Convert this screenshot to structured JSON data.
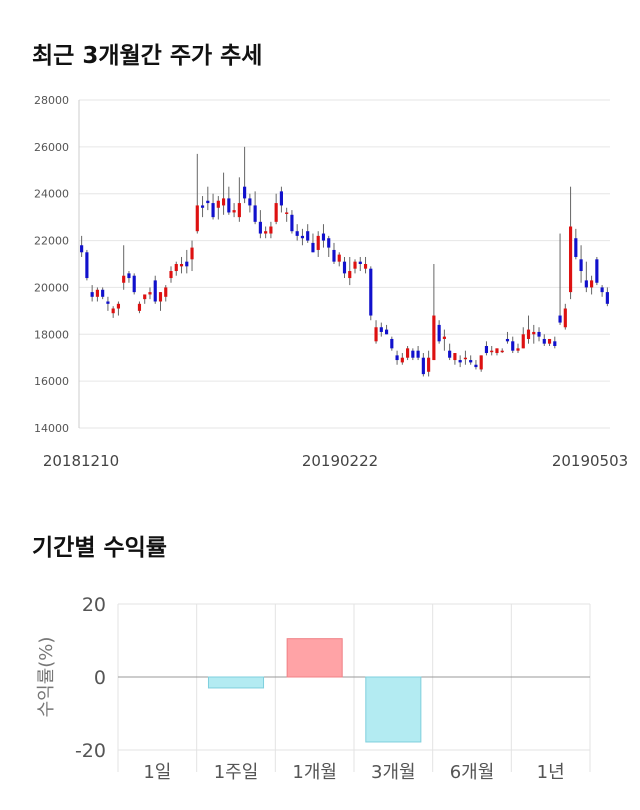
{
  "section1_title": "최근 3개월간 주가 추세",
  "section2_title": "기간별 수익률",
  "chart_data": [
    {
      "type": "candlestick",
      "title": "최근 3개월간 주가 추세",
      "ylim": [
        14000,
        28000
      ],
      "yticks": [
        "14000",
        "16000",
        "18000",
        "20000",
        "22000",
        "24000",
        "26000",
        "28000"
      ],
      "xtick_labels": [
        "20181210",
        "20190222",
        "20190503"
      ],
      "grid": true,
      "colors": {
        "up": "#dd1111",
        "down": "#1111cc",
        "wick": "#666666"
      },
      "series": [
        {
          "name": "",
          "values": [
            [
              21800,
              22200,
              21300,
              21500
            ],
            [
              21500,
              21600,
              20300,
              20400
            ],
            [
              19800,
              20100,
              19400,
              19600
            ],
            [
              19600,
              20000,
              19400,
              19900
            ],
            [
              19900,
              20000,
              19500,
              19600
            ],
            [
              19400,
              19600,
              19000,
              19300
            ],
            [
              18900,
              19200,
              18700,
              19100
            ],
            [
              19100,
              19400,
              18800,
              19300
            ],
            [
              20200,
              21800,
              19900,
              20500
            ],
            [
              20600,
              20700,
              20200,
              20400
            ],
            [
              20500,
              20600,
              19700,
              19800
            ],
            [
              19000,
              19400,
              18900,
              19300
            ],
            [
              19500,
              19700,
              19300,
              19700
            ],
            [
              19700,
              20000,
              19500,
              19800
            ],
            [
              20300,
              20500,
              19300,
              19400
            ],
            [
              19400,
              19800,
              19000,
              19800
            ],
            [
              19600,
              20100,
              19400,
              20000
            ],
            [
              20400,
              20900,
              20200,
              20700
            ],
            [
              20700,
              21100,
              20500,
              21000
            ],
            [
              20900,
              21300,
              20600,
              21000
            ],
            [
              21100,
              21600,
              20600,
              20900
            ],
            [
              21200,
              22000,
              20700,
              21700
            ],
            [
              22400,
              25700,
              22300,
              23500
            ],
            [
              23500,
              23900,
              23000,
              23400
            ],
            [
              23700,
              24300,
              23300,
              23600
            ],
            [
              23600,
              24000,
              22900,
              23000
            ],
            [
              23400,
              23900,
              22900,
              23700
            ],
            [
              23500,
              24900,
              23100,
              23800
            ],
            [
              23800,
              24300,
              23100,
              23200
            ],
            [
              23200,
              23600,
              23000,
              23300
            ],
            [
              23000,
              24700,
              22800,
              23600
            ],
            [
              24300,
              26000,
              23600,
              23800
            ],
            [
              23800,
              24000,
              23200,
              23500
            ],
            [
              23500,
              24100,
              22700,
              22800
            ],
            [
              22800,
              23300,
              22100,
              22300
            ],
            [
              22300,
              22600,
              22100,
              22400
            ],
            [
              22300,
              22800,
              22100,
              22600
            ],
            [
              22800,
              24000,
              22700,
              23600
            ],
            [
              24100,
              24300,
              23200,
              23500
            ],
            [
              23200,
              23400,
              22800,
              23200
            ],
            [
              23100,
              23300,
              22300,
              22400
            ],
            [
              22400,
              22700,
              22000,
              22200
            ],
            [
              22200,
              22500,
              21800,
              22100
            ],
            [
              22400,
              22700,
              21900,
              22000
            ],
            [
              21900,
              22300,
              21500,
              21500
            ],
            [
              21600,
              22400,
              21300,
              22200
            ],
            [
              22300,
              22700,
              21700,
              22000
            ],
            [
              22100,
              22200,
              21300,
              21700
            ],
            [
              21600,
              21900,
              21000,
              21100
            ],
            [
              21100,
              21500,
              20900,
              21400
            ],
            [
              21100,
              21300,
              20400,
              20600
            ],
            [
              20400,
              21300,
              20100,
              20700
            ],
            [
              20800,
              21200,
              20600,
              21100
            ],
            [
              21100,
              21300,
              20700,
              21000
            ],
            [
              20800,
              21300,
              20600,
              21000
            ],
            [
              20800,
              20900,
              18600,
              18800
            ],
            [
              17700,
              18600,
              17600,
              18300
            ],
            [
              18300,
              18500,
              17900,
              18100
            ],
            [
              18200,
              18400,
              18000,
              18000
            ],
            [
              17800,
              17900,
              17300,
              17400
            ],
            [
              17100,
              17300,
              16700,
              16900
            ],
            [
              16800,
              17200,
              16700,
              17000
            ],
            [
              17000,
              17500,
              16900,
              17400
            ],
            [
              17300,
              17400,
              16900,
              17000
            ],
            [
              17300,
              17500,
              16900,
              17000
            ],
            [
              17000,
              17200,
              16200,
              16300
            ],
            [
              16400,
              17300,
              16200,
              17000
            ],
            [
              16900,
              21000,
              16900,
              18800
            ],
            [
              18400,
              18600,
              17600,
              17700
            ],
            [
              17800,
              18200,
              17300,
              17900
            ],
            [
              17300,
              17600,
              16900,
              17000
            ],
            [
              16900,
              17200,
              16700,
              17200
            ],
            [
              16900,
              17100,
              16600,
              16800
            ],
            [
              17000,
              17300,
              16700,
              17000
            ],
            [
              16900,
              17100,
              16700,
              16800
            ],
            [
              16700,
              16900,
              16500,
              16600
            ],
            [
              16500,
              17100,
              16400,
              17100
            ],
            [
              17500,
              17700,
              17100,
              17200
            ],
            [
              17300,
              17500,
              17100,
              17300
            ],
            [
              17200,
              17400,
              17100,
              17400
            ],
            [
              17300,
              17400,
              17200,
              17300
            ],
            [
              17800,
              18100,
              17600,
              17700
            ],
            [
              17700,
              17900,
              17200,
              17300
            ],
            [
              17300,
              17600,
              17200,
              17400
            ],
            [
              17400,
              18300,
              17400,
              18000
            ],
            [
              17800,
              18800,
              17600,
              18200
            ],
            [
              18000,
              18400,
              17600,
              18100
            ],
            [
              18100,
              18300,
              17700,
              17900
            ],
            [
              17800,
              18000,
              17500,
              17600
            ],
            [
              17600,
              17800,
              17500,
              17800
            ],
            [
              17700,
              17900,
              17400,
              17500
            ],
            [
              18800,
              22300,
              18400,
              18500
            ],
            [
              18300,
              19300,
              18200,
              19100
            ],
            [
              19800,
              24300,
              19500,
              22600
            ],
            [
              22100,
              22500,
              21200,
              21300
            ],
            [
              21200,
              21800,
              20200,
              20700
            ],
            [
              20300,
              21100,
              19800,
              20000
            ],
            [
              20000,
              20500,
              19700,
              20300
            ],
            [
              21200,
              21300,
              20100,
              20200
            ],
            [
              20000,
              20100,
              19600,
              19800
            ],
            [
              19800,
              20000,
              19200,
              19300
            ]
          ]
        }
      ]
    },
    {
      "type": "bar",
      "title": "기간별 수익률",
      "ylabel": "수익률(%)",
      "categories": [
        "1일",
        "1주일",
        "1개월",
        "3개월",
        "6개월",
        "1년"
      ],
      "values": [
        0,
        -3.0,
        10.5,
        -17.8,
        0,
        0
      ],
      "ylim": [
        -20,
        20
      ],
      "yticks": [
        "20",
        "0",
        "-20"
      ],
      "grid": true,
      "colors": {
        "positive": "#ffa3a6",
        "positive_edge": "#f08085",
        "negative": "#b3ebf2",
        "negative_edge": "#7fcfdd"
      }
    }
  ]
}
